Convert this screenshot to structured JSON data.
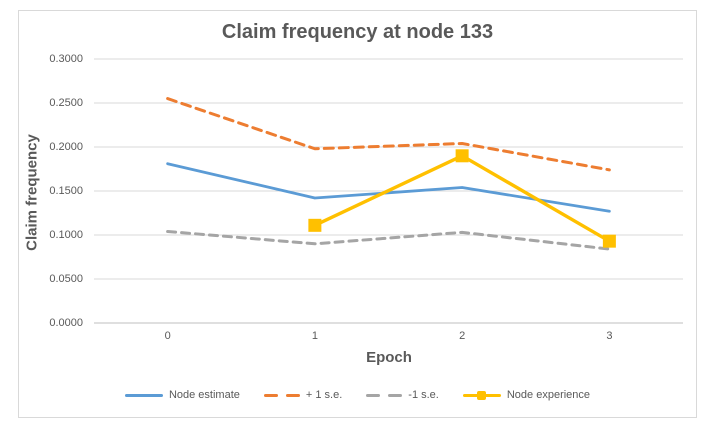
{
  "chart_data": {
    "type": "line",
    "title": "Claim frequency at node 133",
    "xlabel": "Epoch",
    "ylabel": "Claim frequency",
    "categories": [
      "0",
      "1",
      "2",
      "3"
    ],
    "series": [
      {
        "name": "Node estimate",
        "color": "#5B9BD5",
        "line_style": "solid",
        "dash": "",
        "stroke_width": 2.8,
        "marker": "none",
        "values": [
          0.181,
          0.142,
          0.154,
          0.127
        ]
      },
      {
        "name": "+ 1 s.e.",
        "color": "#ED7D31",
        "line_style": "dashed",
        "dash": "9 6",
        "stroke_width": 3,
        "marker": "none",
        "values": [
          0.255,
          0.198,
          0.204,
          0.174
        ]
      },
      {
        "name": "-1 s.e.",
        "color": "#A5A5A5",
        "line_style": "dashed",
        "dash": "8 6",
        "stroke_width": 3,
        "marker": "none",
        "values": [
          0.104,
          0.09,
          0.103,
          0.084
        ]
      },
      {
        "name": "Node experience",
        "color": "#FFC000",
        "line_style": "solid",
        "dash": "",
        "stroke_width": 3.4,
        "marker": "square",
        "values": [
          null,
          0.111,
          0.19,
          0.093
        ]
      }
    ],
    "ylim": [
      0,
      0.3
    ],
    "ytick_step": 0.05,
    "ytick_decimals": 4,
    "grid": "horizontal",
    "legend_position": "bottom"
  },
  "colors": {
    "gridline": "#D9D9D9",
    "axis_line": "#BFBFBF",
    "text": "#595959",
    "frame_border": "#D9D9D9",
    "background": "#FFFFFF"
  }
}
